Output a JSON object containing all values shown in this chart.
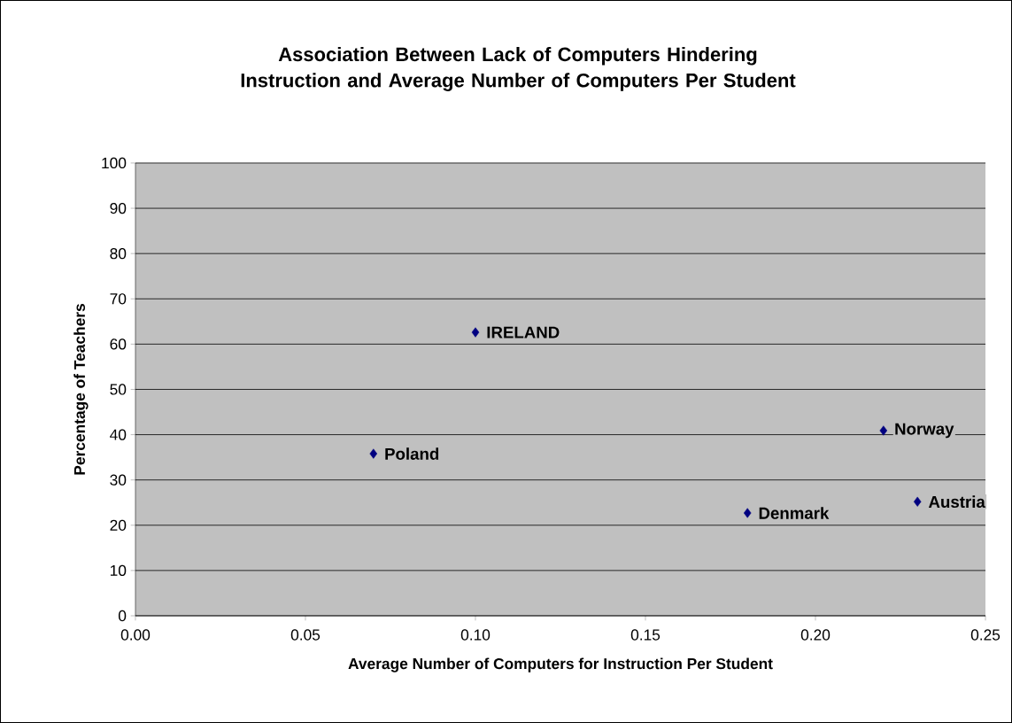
{
  "chart_data": {
    "type": "scatter",
    "title": "Association Between Lack of Computers Hindering Instruction and Average Number of Computers Per Student",
    "xlabel": "Average Number of Computers for Instruction Per Student",
    "ylabel": "Percentage of Teachers",
    "x": [
      0.1,
      0.07,
      0.22,
      0.18,
      0.23
    ],
    "values": [
      62.6,
      35.8,
      40.9,
      22.7,
      25.2
    ],
    "color": "#000080",
    "marker": "diamond",
    "grid": "y",
    "xlim": [
      0,
      0.25
    ],
    "ylim": [
      0,
      100
    ],
    "xticks": [
      {
        "value": 0,
        "label": "0.00"
      },
      {
        "value": 0.05,
        "label": "0.05"
      },
      {
        "value": 0.1,
        "label": "0.10"
      },
      {
        "value": 0.15,
        "label": "0.15"
      },
      {
        "value": 0.2,
        "label": "0.20"
      },
      {
        "value": 0.25,
        "label": "0.25"
      }
    ],
    "yticks": [
      0,
      10,
      20,
      30,
      40,
      50,
      60,
      70,
      80,
      90,
      100
    ],
    "annotations": [
      {
        "text": "IRELAND",
        "x": 0.1,
        "y": 62.6
      },
      {
        "text": "Poland",
        "x": 0.07,
        "y": 35.8
      },
      {
        "text": "Norway",
        "x": 0.22,
        "y": 40.9
      },
      {
        "text": "Denmark",
        "x": 0.18,
        "y": 22.7
      },
      {
        "text": "Austria",
        "x": 0.23,
        "y": 25.2
      }
    ]
  }
}
